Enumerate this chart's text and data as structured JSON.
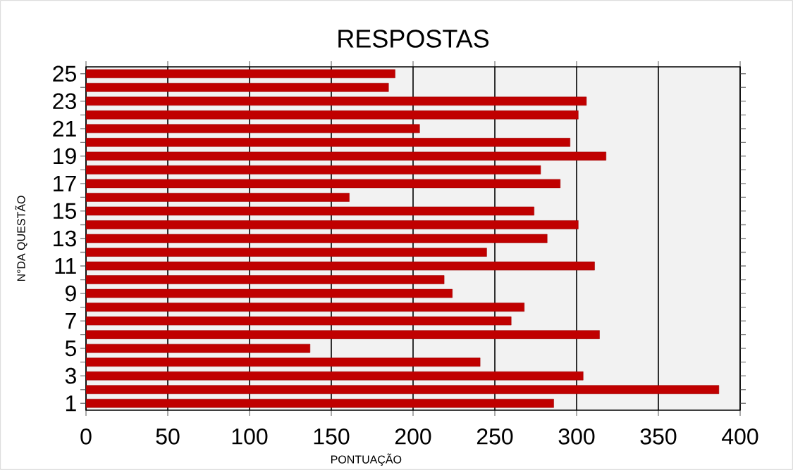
{
  "chart_data": {
    "type": "bar",
    "orientation": "horizontal",
    "title": "RESPOSTAS",
    "xlabel": "PONTUAÇÃO",
    "ylabel": "N°DA QUESTÃO",
    "categories": [
      "25",
      null,
      "23",
      null,
      "21",
      null,
      "19",
      null,
      "17",
      null,
      "15",
      null,
      "13",
      null,
      "11",
      null,
      "9",
      null,
      "7",
      null,
      "5",
      null,
      "3",
      null,
      "1"
    ],
    "values": [
      189,
      185,
      306,
      301,
      204,
      296,
      318,
      278,
      290,
      161,
      274,
      301,
      282,
      245,
      311,
      219,
      224,
      268,
      260,
      314,
      137,
      241,
      304,
      387,
      286
    ],
    "color": "#c00000",
    "xlim": [
      0,
      400
    ],
    "xticks": [
      0,
      50,
      100,
      150,
      200,
      250,
      300,
      350,
      400
    ],
    "grid": "x"
  }
}
